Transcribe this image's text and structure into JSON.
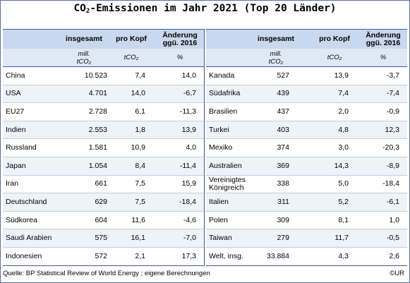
{
  "title_main": "CO",
  "title_sub": "2",
  "title_rest": "-Emissionen im Jahr 2021 (Top 20 Länder)",
  "header": {
    "total": "insgesamt",
    "per_capita": "pro Kopf",
    "change_line1": "Änderung",
    "change_line2": "ggü. 2016"
  },
  "units": {
    "total_line1": "mill.",
    "total_line2": "tCO₂",
    "per_capita": "tCO₂",
    "change": "%"
  },
  "left_rows": [
    {
      "name": "China",
      "total": "10.523",
      "per_capita": "7,4",
      "change": "14,0"
    },
    {
      "name": "USA",
      "total": "4.701",
      "per_capita": "14,0",
      "change": "-6,7"
    },
    {
      "name": "EU27",
      "total": "2.728",
      "per_capita": "6,1",
      "change": "-11,3"
    },
    {
      "name": "Indien",
      "total": "2.553",
      "per_capita": "1,8",
      "change": "13,9"
    },
    {
      "name": "Russland",
      "total": "1.581",
      "per_capita": "10,9",
      "change": "4,0"
    },
    {
      "name": "Japan",
      "total": "1.054",
      "per_capita": "8,4",
      "change": "-11,4"
    },
    {
      "name": "Iran",
      "total": "661",
      "per_capita": "7,5",
      "change": "15,9"
    },
    {
      "name": "Deutschland",
      "total": "629",
      "per_capita": "7,5",
      "change": "-18,4"
    },
    {
      "name": "Südkorea",
      "total": "604",
      "per_capita": "11,6",
      "change": "-4,6"
    },
    {
      "name": "Saudi Arabien",
      "total": "575",
      "per_capita": "16,1",
      "change": "-7,0"
    },
    {
      "name": "Indonesien",
      "total": "572",
      "per_capita": "2,1",
      "change": "17,3"
    }
  ],
  "right_rows": [
    {
      "name": "Kanada",
      "total": "527",
      "per_capita": "13,9",
      "change": "-3,7"
    },
    {
      "name": "Südafrika",
      "total": "439",
      "per_capita": "7,4",
      "change": "-7,4"
    },
    {
      "name": "Brasilien",
      "total": "437",
      "per_capita": "2,0",
      "change": "-0,9"
    },
    {
      "name": "Turkei",
      "total": "403",
      "per_capita": "4,8",
      "change": "12,3"
    },
    {
      "name": "Mexiko",
      "total": "374",
      "per_capita": "3,0",
      "change": "-20,3"
    },
    {
      "name": "Australien",
      "total": "369",
      "per_capita": "14,3",
      "change": "-8,9"
    },
    {
      "name": "Vereinigtes Königreich",
      "total": "338",
      "per_capita": "5,0",
      "change": "-18,4"
    },
    {
      "name": "Italien",
      "total": "311",
      "per_capita": "5,2",
      "change": "-6,1"
    },
    {
      "name": "Polen",
      "total": "309",
      "per_capita": "8,1",
      "change": "1,0"
    },
    {
      "name": "Taiwan",
      "total": "279",
      "per_capita": "11,7",
      "change": "-0,5"
    },
    {
      "name": "Welt, insg.",
      "total": "33.884",
      "per_capita": "4,3",
      "change": "2,6"
    }
  ],
  "source": "Quelle: BP Statistical Review of World Energy ; eigene Berechnungen",
  "copyright": "©UR"
}
